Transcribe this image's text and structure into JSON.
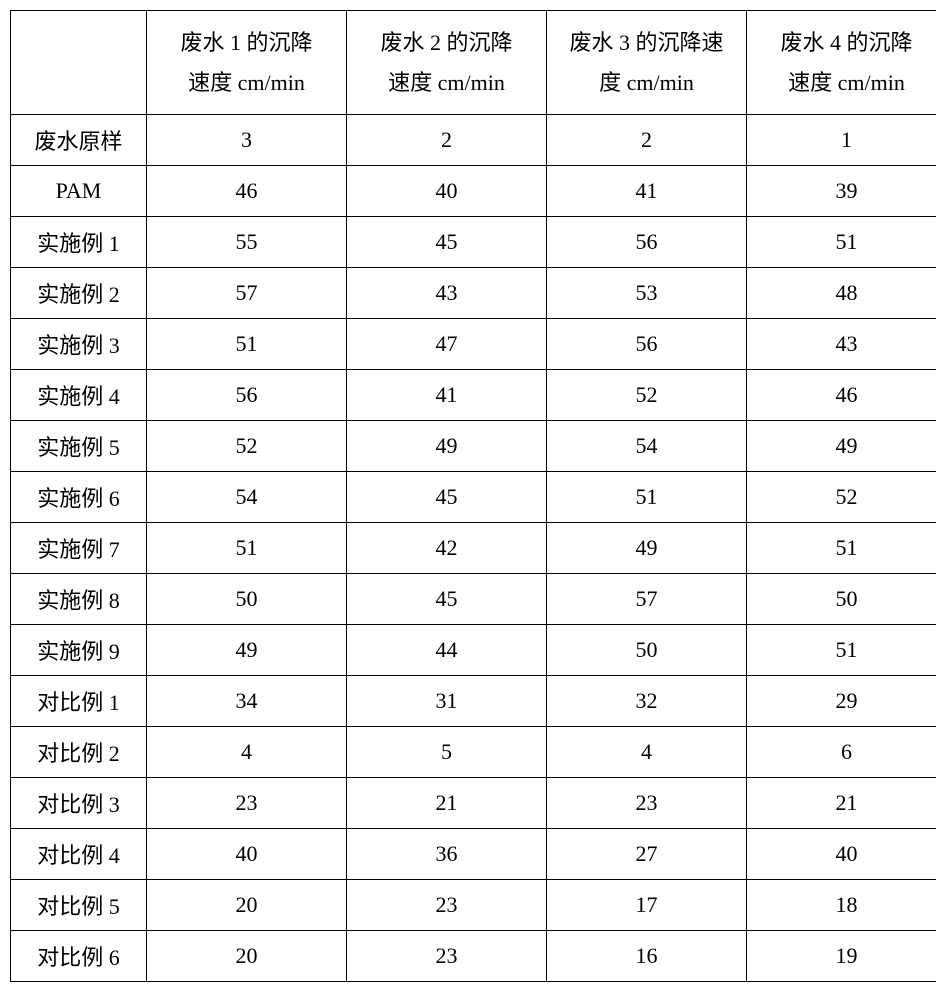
{
  "table": {
    "type": "table",
    "border_color": "#000000",
    "background_color": "#ffffff",
    "text_color": "#000000",
    "font_size": 22,
    "header_line1": [
      "废水 1 的沉降",
      "废水 2 的沉降",
      "废水 3 的沉降速",
      "废水 4 的沉降"
    ],
    "header_line2": [
      "速度 cm/min",
      "速度 cm/min",
      "度 cm/min",
      "速度 cm/min"
    ],
    "row_labels": [
      "废水原样",
      "PAM",
      "实施例 1",
      "实施例 2",
      "实施例 3",
      "实施例 4",
      "实施例 5",
      "实施例 6",
      "实施例 7",
      "实施例 8",
      "实施例 9",
      "对比例 1",
      "对比例 2",
      "对比例 3",
      "对比例 4",
      "对比例 5",
      "对比例 6"
    ],
    "rows": [
      [
        3,
        2,
        2,
        1
      ],
      [
        46,
        40,
        41,
        39
      ],
      [
        55,
        45,
        56,
        51
      ],
      [
        57,
        43,
        53,
        48
      ],
      [
        51,
        47,
        56,
        43
      ],
      [
        56,
        41,
        52,
        46
      ],
      [
        52,
        49,
        54,
        49
      ],
      [
        54,
        45,
        51,
        52
      ],
      [
        51,
        42,
        49,
        51
      ],
      [
        50,
        45,
        57,
        50
      ],
      [
        49,
        44,
        50,
        51
      ],
      [
        34,
        31,
        32,
        29
      ],
      [
        4,
        5,
        4,
        6
      ],
      [
        23,
        21,
        23,
        21
      ],
      [
        40,
        36,
        27,
        40
      ],
      [
        20,
        23,
        17,
        18
      ],
      [
        20,
        23,
        16,
        19
      ]
    ]
  }
}
